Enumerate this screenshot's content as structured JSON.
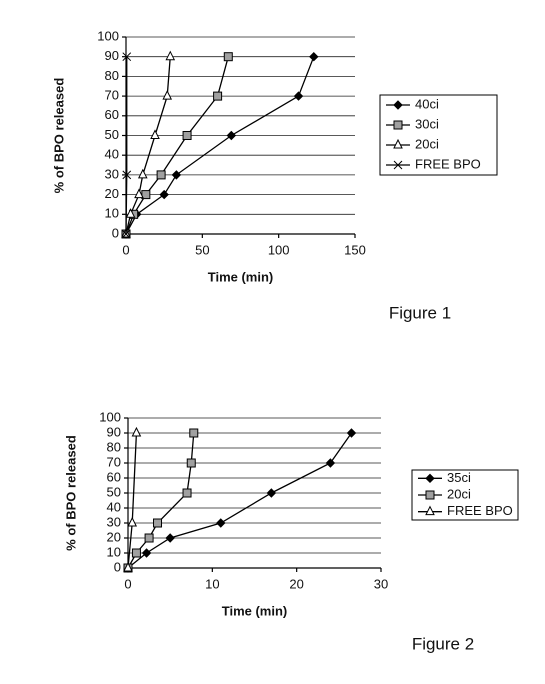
{
  "chart_data": [
    {
      "type": "line",
      "caption": "Figure 1",
      "xlabel": "Time (min)",
      "ylabel": "% of BPO released",
      "xlim": [
        0,
        150
      ],
      "xticks": [
        0,
        50,
        100,
        150
      ],
      "ylim": [
        0,
        100
      ],
      "yticks": [
        0,
        10,
        20,
        30,
        40,
        50,
        60,
        70,
        80,
        90,
        100
      ],
      "grid": true,
      "series": [
        {
          "name": "40ci",
          "color": "#000000",
          "marker": "diamond",
          "marker_fill": "#000000",
          "x": [
            0,
            7,
            25,
            33,
            69,
            113,
            123
          ],
          "values": [
            0,
            10,
            20,
            30,
            50,
            70,
            90
          ]
        },
        {
          "name": "30ci",
          "color": "#000000",
          "marker": "square",
          "marker_fill": "#a0a0a0",
          "x": [
            0,
            5,
            13,
            23,
            40,
            60,
            67
          ],
          "values": [
            0,
            10,
            20,
            30,
            50,
            70,
            90
          ]
        },
        {
          "name": "20ci",
          "color": "#000000",
          "marker": "triangle",
          "marker_fill": "#ffffff",
          "x": [
            0,
            3,
            8.5,
            11,
            19,
            27,
            29
          ],
          "values": [
            0,
            10,
            20,
            30,
            50,
            70,
            90
          ]
        },
        {
          "name": "FREE BPO",
          "color": "#000000",
          "marker": "x",
          "marker_fill": "#000000",
          "x": [
            0,
            0.5,
            0.5
          ],
          "values": [
            0,
            30,
            90
          ]
        }
      ]
    },
    {
      "type": "line",
      "caption": "Figure 2",
      "xlabel": "Time (min)",
      "ylabel": "% of BPO released",
      "xlim": [
        0,
        30
      ],
      "xticks": [
        0,
        10,
        20,
        30
      ],
      "ylim": [
        0,
        100
      ],
      "yticks": [
        0,
        10,
        20,
        30,
        40,
        50,
        60,
        70,
        80,
        90,
        100
      ],
      "grid": true,
      "series": [
        {
          "name": "35ci",
          "color": "#000000",
          "marker": "diamond",
          "marker_fill": "#000000",
          "x": [
            0,
            2.2,
            5,
            11,
            17,
            24,
            26.5
          ],
          "values": [
            0,
            10,
            20,
            30,
            50,
            70,
            90
          ]
        },
        {
          "name": "20ci",
          "color": "#000000",
          "marker": "square",
          "marker_fill": "#a0a0a0",
          "x": [
            0,
            1,
            2.5,
            3.5,
            7,
            7.5,
            7.8
          ],
          "values": [
            0,
            10,
            20,
            30,
            50,
            70,
            90
          ]
        },
        {
          "name": "FREE BPO",
          "color": "#000000",
          "marker": "triangle",
          "marker_fill": "#ffffff",
          "x": [
            0,
            0.5,
            1
          ],
          "values": [
            0,
            30,
            90
          ]
        }
      ]
    }
  ]
}
